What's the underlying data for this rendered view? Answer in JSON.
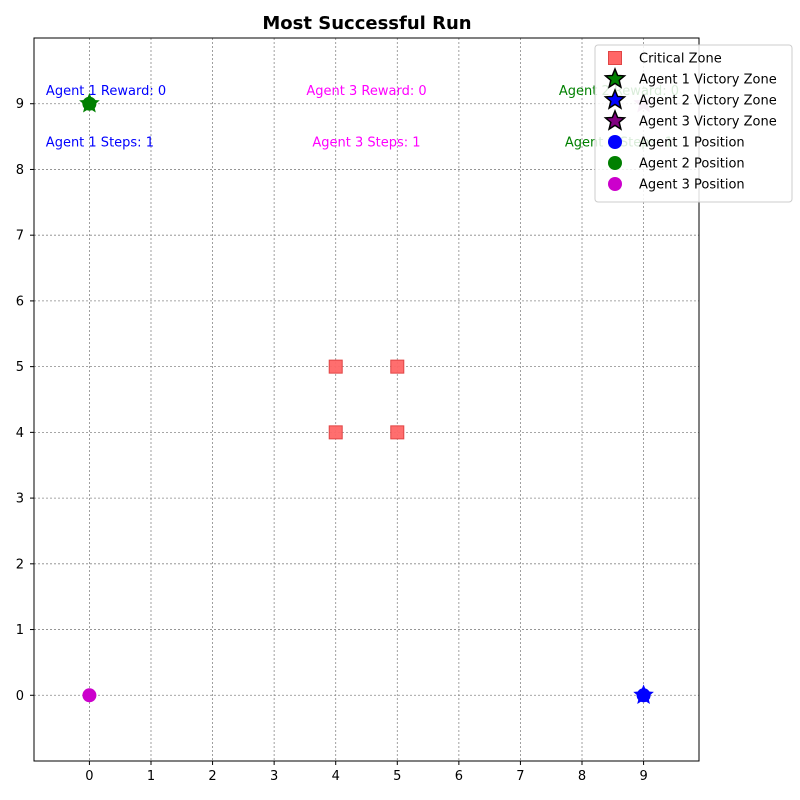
{
  "chart_data": {
    "type": "scatter",
    "title": "Most Successful Run",
    "xlabel": "",
    "ylabel": "",
    "xlim": [
      -0.9,
      9.9
    ],
    "ylim": [
      -1,
      10
    ],
    "xticks": [
      0,
      1,
      2,
      3,
      4,
      5,
      6,
      7,
      8,
      9
    ],
    "yticks": [
      0,
      1,
      2,
      3,
      4,
      5,
      6,
      7,
      8,
      9
    ],
    "grid": true,
    "legend_position": "top-right",
    "critical_zone": {
      "label": "Critical Zone",
      "color": "#ff6666",
      "points": [
        [
          4,
          5
        ],
        [
          5,
          5
        ],
        [
          4,
          4
        ],
        [
          5,
          4
        ]
      ]
    },
    "victory_zones": [
      {
        "label": "Agent 1 Victory Zone",
        "color": "#008000",
        "x": 0,
        "y": 9
      },
      {
        "label": "Agent 2 Victory Zone",
        "color": "#0000ff",
        "x": 9,
        "y": 0
      },
      {
        "label": "Agent 3 Victory Zone",
        "color": "#cc99cc",
        "legend_color": "#800080",
        "x": 9,
        "y": 9
      }
    ],
    "agent_positions": [
      {
        "label": "Agent 1 Position",
        "color": "#0000ff",
        "x": 9,
        "y": 0
      },
      {
        "label": "Agent 2 Position",
        "color": "#008000",
        "x": 0,
        "y": 9
      },
      {
        "label": "Agent 3 Position",
        "color": "#cc00cc",
        "x": 0,
        "y": 0
      }
    ],
    "annotations": [
      {
        "text": "Agent 1 Reward: 0",
        "color": "#0000ff",
        "x": 0.27,
        "y": 9.2
      },
      {
        "text": "Agent 1 Steps: 1",
        "color": "#0000ff",
        "x": 0.17,
        "y": 8.42
      },
      {
        "text": "Agent 3 Reward: 0",
        "color": "#ff00ff",
        "x": 4.5,
        "y": 9.2
      },
      {
        "text": "Agent 3 Steps: 1",
        "color": "#ff00ff",
        "x": 4.5,
        "y": 8.42
      },
      {
        "text": "Agent 2 Reward: 0",
        "color": "#008000",
        "x": 8.6,
        "y": 9.2
      },
      {
        "text": "Agent 2 Steps: 1",
        "color": "#008000",
        "x": 8.6,
        "y": 8.42
      }
    ]
  }
}
